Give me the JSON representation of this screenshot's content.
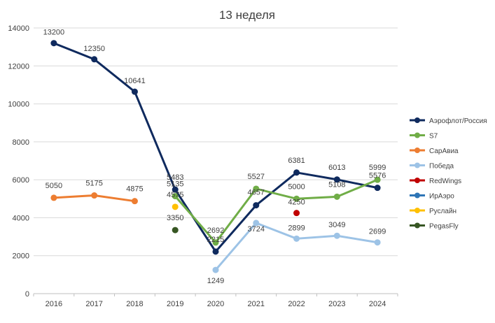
{
  "chart_data": {
    "type": "line",
    "title": "13 неделя",
    "xlabel": "",
    "ylabel": "",
    "categories": [
      "2016",
      "2017",
      "2018",
      "2019",
      "2020",
      "2021",
      "2022",
      "2023",
      "2024"
    ],
    "ylim": [
      0,
      14000
    ],
    "yticks": [
      0,
      2000,
      4000,
      6000,
      8000,
      10000,
      12000,
      14000
    ],
    "grid": true,
    "legend_position": "right",
    "series": [
      {
        "name": "Аэрофлот/Россия",
        "color": "#0f2a5e",
        "values": [
          13200,
          12350,
          10641,
          5483,
          2215,
          4657,
          6381,
          6013,
          5576
        ],
        "labels": [
          "13200",
          "12350",
          "10641",
          "5483",
          "2215",
          "4657",
          "6381",
          "6013",
          "5576"
        ]
      },
      {
        "name": "S7",
        "color": "#70ad47",
        "values": [
          null,
          null,
          null,
          5135,
          2692,
          5527,
          5000,
          5108,
          5999
        ],
        "labels": [
          "",
          "",
          "",
          "5135",
          "2692",
          "5527",
          "5000",
          "5108",
          "5999"
        ]
      },
      {
        "name": "СарАвиа",
        "color": "#ed7d31",
        "values": [
          5050,
          5175,
          4875,
          null,
          null,
          null,
          null,
          null,
          null
        ],
        "labels": [
          "5050",
          "5175",
          "4875",
          "",
          "",
          "",
          "",
          "",
          ""
        ]
      },
      {
        "name": "Победа",
        "color": "#9dc3e6",
        "values": [
          null,
          null,
          null,
          null,
          1249,
          3724,
          2899,
          3049,
          2699
        ],
        "labels": [
          "",
          "",
          "",
          "",
          "1249",
          "3724",
          "2899",
          "3049",
          "2699"
        ]
      },
      {
        "name": "RedWings",
        "color": "#c00000",
        "values": [
          null,
          null,
          null,
          null,
          null,
          null,
          4250,
          null,
          null
        ],
        "labels": [
          "",
          "",
          "",
          "",
          "",
          "",
          "4250",
          "",
          ""
        ]
      },
      {
        "name": "ИрАэро",
        "color": "#2e75b6",
        "values": [
          null,
          null,
          null,
          null,
          null,
          null,
          null,
          null,
          null
        ],
        "labels": [
          "",
          "",
          "",
          "",
          "",
          "",
          "",
          "",
          ""
        ]
      },
      {
        "name": "Руслайн",
        "color": "#ffc000",
        "values": [
          null,
          null,
          null,
          4575,
          null,
          null,
          null,
          null,
          null
        ],
        "labels": [
          "",
          "",
          "",
          "4575",
          "",
          "",
          "",
          "",
          ""
        ]
      },
      {
        "name": "PegasFly",
        "color": "#375623",
        "values": [
          null,
          null,
          null,
          3350,
          null,
          null,
          null,
          null,
          null
        ],
        "labels": [
          "",
          "",
          "",
          "3350",
          "",
          "",
          "",
          "",
          ""
        ]
      }
    ]
  }
}
